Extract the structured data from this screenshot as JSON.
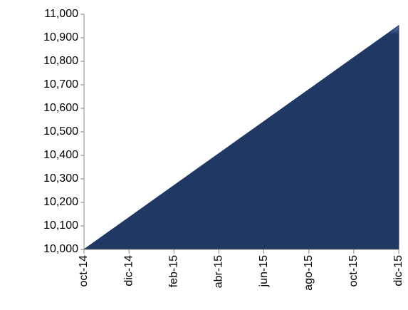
{
  "chart_data": {
    "type": "area",
    "categories": [
      "oct-14",
      null,
      "dic-14",
      null,
      "feb-15",
      null,
      "abr-15",
      null,
      "jun-15",
      null,
      "ago-15",
      null,
      "oct-15",
      null,
      "dic-15"
    ],
    "values": [
      10000,
      10068,
      10136,
      10204,
      10272,
      10340,
      10408,
      10476,
      10544,
      10612,
      10680,
      10748,
      10816,
      10884,
      10952
    ],
    "color": "#1f3864",
    "ylim": [
      10000,
      11000
    ],
    "yticks": [
      {
        "value": 10000,
        "label": "10,000"
      },
      {
        "value": 10100,
        "label": "10,100"
      },
      {
        "value": 10200,
        "label": "10,200"
      },
      {
        "value": 10300,
        "label": "10,300"
      },
      {
        "value": 10400,
        "label": "10,400"
      },
      {
        "value": 10500,
        "label": "10,500"
      },
      {
        "value": 10600,
        "label": "10,600"
      },
      {
        "value": 10700,
        "label": "10,700"
      },
      {
        "value": 10800,
        "label": "10,800"
      },
      {
        "value": 10900,
        "label": "10,900"
      },
      {
        "value": 11000,
        "label": "11,000"
      }
    ],
    "grid": false
  }
}
